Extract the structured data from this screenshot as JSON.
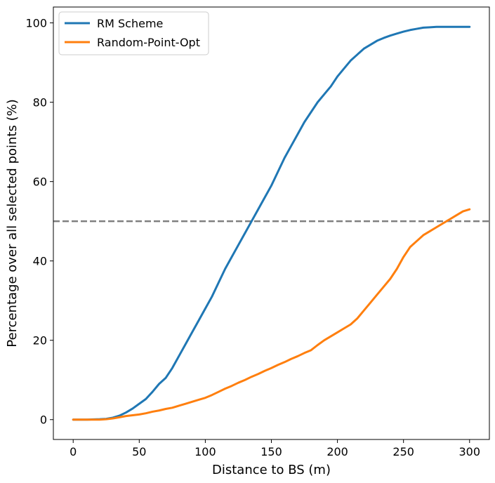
{
  "chart_data": {
    "type": "line",
    "title": "",
    "xlabel": "Distance to BS (m)",
    "ylabel": "Percentage over all selected points (%)",
    "xlim": [
      -15,
      315
    ],
    "ylim": [
      -5,
      104
    ],
    "xticks": [
      0,
      50,
      100,
      150,
      200,
      250,
      300
    ],
    "yticks": [
      0,
      20,
      40,
      60,
      80,
      100
    ],
    "grid": false,
    "legend_position": "top-left",
    "reference_line": {
      "y": 50,
      "style": "dashed",
      "color": "#808080"
    },
    "series": [
      {
        "name": "RM Scheme",
        "color": "#1f77b4",
        "x": [
          0,
          10,
          20,
          25,
          30,
          35,
          40,
          45,
          50,
          55,
          60,
          65,
          70,
          75,
          80,
          85,
          90,
          95,
          100,
          105,
          110,
          115,
          120,
          125,
          130,
          135,
          140,
          145,
          150,
          155,
          160,
          165,
          170,
          175,
          180,
          185,
          190,
          195,
          200,
          205,
          210,
          215,
          220,
          225,
          230,
          235,
          240,
          245,
          250,
          255,
          260,
          265,
          270,
          275,
          280,
          285,
          290,
          295,
          300
        ],
        "y": [
          0,
          0,
          0.1,
          0.2,
          0.5,
          1.0,
          1.8,
          2.8,
          4.0,
          5.2,
          7.0,
          9.0,
          10.5,
          13.0,
          16.0,
          19.0,
          22.0,
          25.0,
          28.0,
          31.0,
          34.5,
          38.0,
          41.0,
          44.0,
          47.0,
          50.0,
          53.0,
          56.0,
          59.0,
          62.5,
          66.0,
          69.0,
          72.0,
          75.0,
          77.5,
          80.0,
          82.0,
          84.0,
          86.5,
          88.5,
          90.5,
          92.0,
          93.5,
          94.5,
          95.5,
          96.2,
          96.8,
          97.3,
          97.8,
          98.2,
          98.5,
          98.8,
          98.9,
          99.0,
          99.0,
          99.0,
          99.0,
          99.0,
          99.0
        ]
      },
      {
        "name": "Random-Point-Opt",
        "color": "#ff7f0e",
        "x": [
          0,
          10,
          20,
          25,
          30,
          35,
          40,
          45,
          50,
          55,
          60,
          65,
          70,
          75,
          80,
          85,
          90,
          95,
          100,
          105,
          110,
          115,
          120,
          125,
          130,
          135,
          140,
          145,
          150,
          155,
          160,
          165,
          170,
          175,
          180,
          185,
          190,
          195,
          200,
          205,
          210,
          215,
          220,
          225,
          230,
          235,
          240,
          245,
          250,
          255,
          260,
          265,
          270,
          275,
          280,
          285,
          290,
          295,
          300
        ],
        "y": [
          0,
          0,
          0,
          0.1,
          0.3,
          0.6,
          0.9,
          1.1,
          1.3,
          1.6,
          2.0,
          2.3,
          2.7,
          3.0,
          3.5,
          4.0,
          4.5,
          5.0,
          5.5,
          6.2,
          7.0,
          7.8,
          8.5,
          9.3,
          10.0,
          10.8,
          11.5,
          12.3,
          13.0,
          13.8,
          14.5,
          15.3,
          16.0,
          16.8,
          17.5,
          18.8,
          20.0,
          21.0,
          22.0,
          23.0,
          24.0,
          25.5,
          27.5,
          29.5,
          31.5,
          33.5,
          35.5,
          38.0,
          41.0,
          43.5,
          45.0,
          46.5,
          47.5,
          48.5,
          49.5,
          50.5,
          51.5,
          52.5,
          53.0
        ]
      }
    ]
  }
}
